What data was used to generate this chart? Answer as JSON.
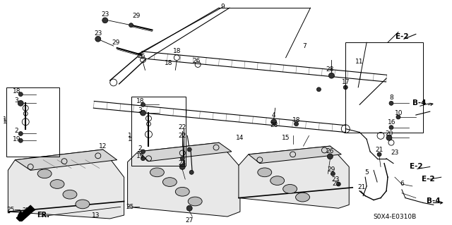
{
  "bg_color": "#ffffff",
  "diagram_code": "S0X4-E0310B",
  "fig_width": 6.4,
  "fig_height": 3.19,
  "dpi": 100
}
